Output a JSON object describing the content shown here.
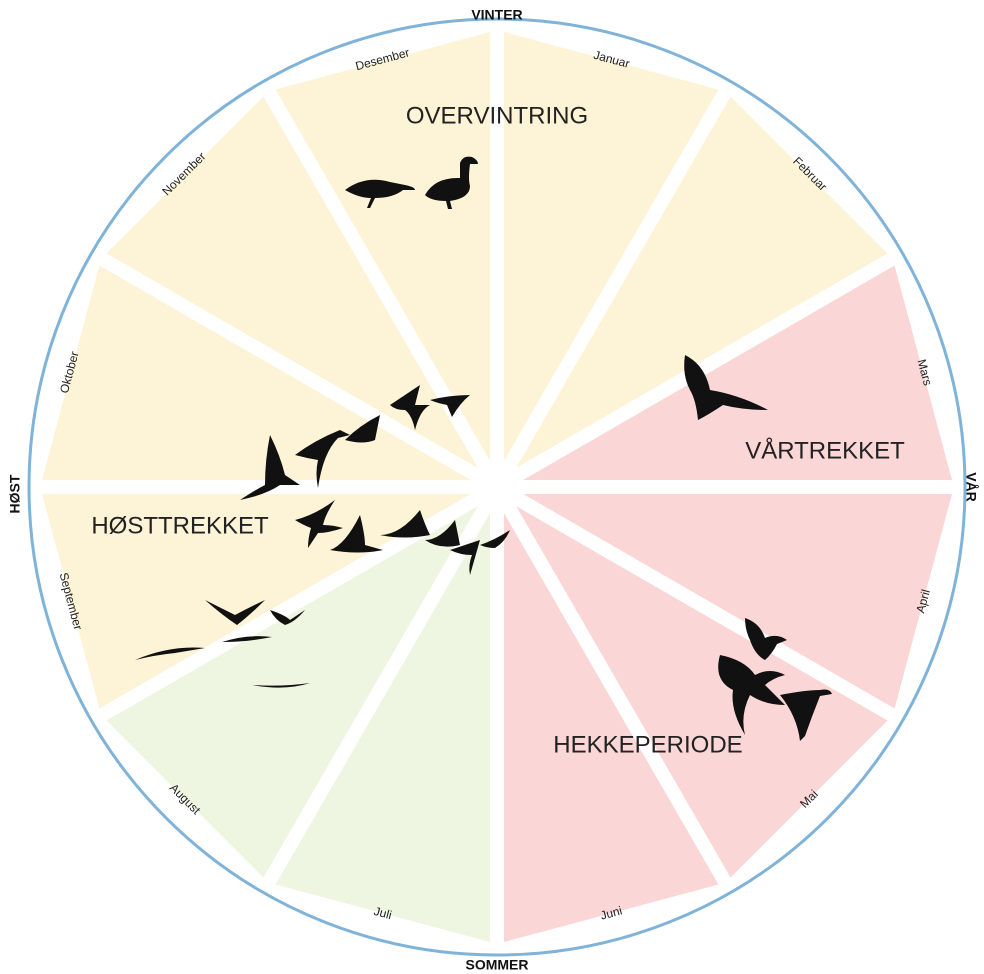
{
  "seasons": {
    "winter": "VINTER",
    "spring": "VÅR",
    "summer": "SOMMER",
    "autumn": "HØST"
  },
  "months": [
    "Januar",
    "Februar",
    "Mars",
    "April",
    "Mai",
    "Juni",
    "Juli",
    "August",
    "September",
    "Oktober",
    "November",
    "Desember"
  ],
  "phases": {
    "wintering": "OVERVINTRING",
    "spring_migration": "VÅRTREKKET",
    "autumn_migration": "HØSTTREKKET",
    "breeding": "HEKKEPERIODE"
  }
}
